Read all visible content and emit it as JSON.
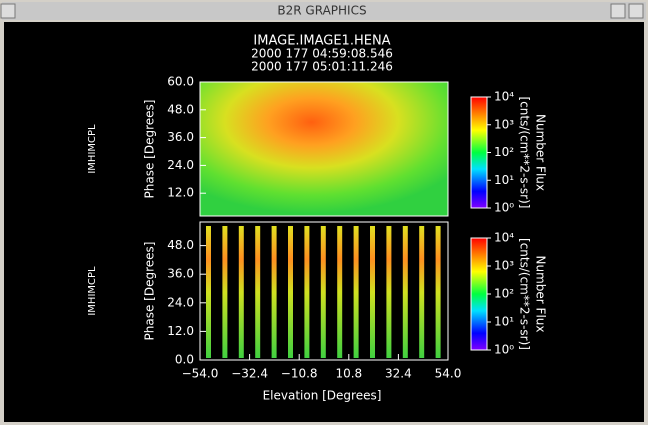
{
  "window": {
    "title": "B2R GRAPHICS"
  },
  "figure": {
    "title": "IMAGE.IMAGE1.HENA",
    "start_time": "2000 177 04:59:08.546",
    "end_time": "2000 177 05:01:11.246",
    "xlabel": "Elevation  [Degrees]",
    "xlim": [
      -54,
      54
    ],
    "xticks": [
      {
        "value": -54,
        "label": "−54.0"
      },
      {
        "value": -32.4,
        "label": "−32.4"
      },
      {
        "value": -10.8,
        "label": "−10.8"
      },
      {
        "value": 10.8,
        "label": "10.8"
      },
      {
        "value": 32.4,
        "label": "32.4"
      },
      {
        "value": 54,
        "label": "54.0"
      }
    ],
    "panels": [
      {
        "side_label": "IMHIMCPL",
        "ylabel": "Phase  [Degrees]",
        "ylim": [
          0,
          60
        ],
        "yticks": [
          {
            "value": 12,
            "label": "12.0"
          },
          {
            "value": 24,
            "label": "24.0"
          },
          {
            "value": 36,
            "label": "36.0"
          },
          {
            "value": 48,
            "label": "48.0"
          },
          {
            "value": 60,
            "label": "60.0"
          }
        ],
        "colorbar": {
          "title": "Number Flux",
          "units": "[cnts/(cm**2-s-sr)]",
          "ticks": [
            {
              "value": 1,
              "label": "10⁰"
            },
            {
              "value": 10,
              "label": "10¹"
            },
            {
              "value": 100,
              "label": "10²"
            },
            {
              "value": 1000,
              "label": "10³"
            },
            {
              "value": 10000,
              "label": "10⁴"
            }
          ]
        }
      },
      {
        "side_label": "IMHIMCPL",
        "ylabel": "Phase  [Degrees]",
        "ylim": [
          0,
          60
        ],
        "yticks": [
          {
            "value": 0,
            "label": "0.0"
          },
          {
            "value": 12,
            "label": "12.0"
          },
          {
            "value": 24,
            "label": "24.0"
          },
          {
            "value": 36,
            "label": "36.0"
          },
          {
            "value": 48,
            "label": "48.0"
          }
        ],
        "colorbar": {
          "title": "Number Flux",
          "units": "[cnts/(cm**2-s-sr)]",
          "ticks": [
            {
              "value": 1,
              "label": "10⁰"
            },
            {
              "value": 10,
              "label": "10¹"
            },
            {
              "value": 100,
              "label": "10²"
            },
            {
              "value": 1000,
              "label": "10³"
            },
            {
              "value": 10000,
              "label": "10⁴"
            }
          ]
        }
      }
    ]
  }
}
